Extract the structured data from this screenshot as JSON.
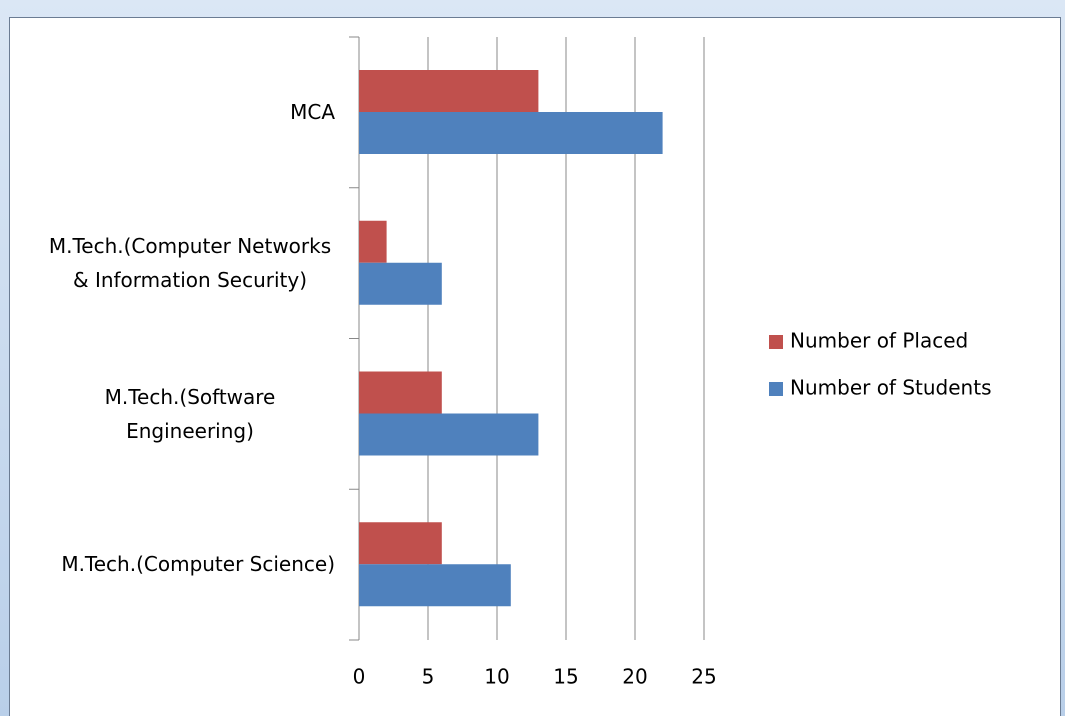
{
  "chart_data": {
    "type": "hbar",
    "categories": [
      "MCA",
      "M.Tech.(Computer Networks & Information Security)",
      "M.Tech.(Software Engineering)",
      "M.Tech.(Computer Science)"
    ],
    "series": [
      {
        "name": "Number of Placed",
        "color": "#c0504d",
        "values": [
          13,
          2,
          6,
          6
        ]
      },
      {
        "name": "Number of Students",
        "color": "#4f81bd",
        "values": [
          22,
          6,
          13,
          11
        ]
      }
    ],
    "xlim": [
      0,
      25
    ],
    "xticks": [
      0,
      5,
      10,
      15,
      20,
      25
    ],
    "grid": true,
    "legend": "right"
  }
}
